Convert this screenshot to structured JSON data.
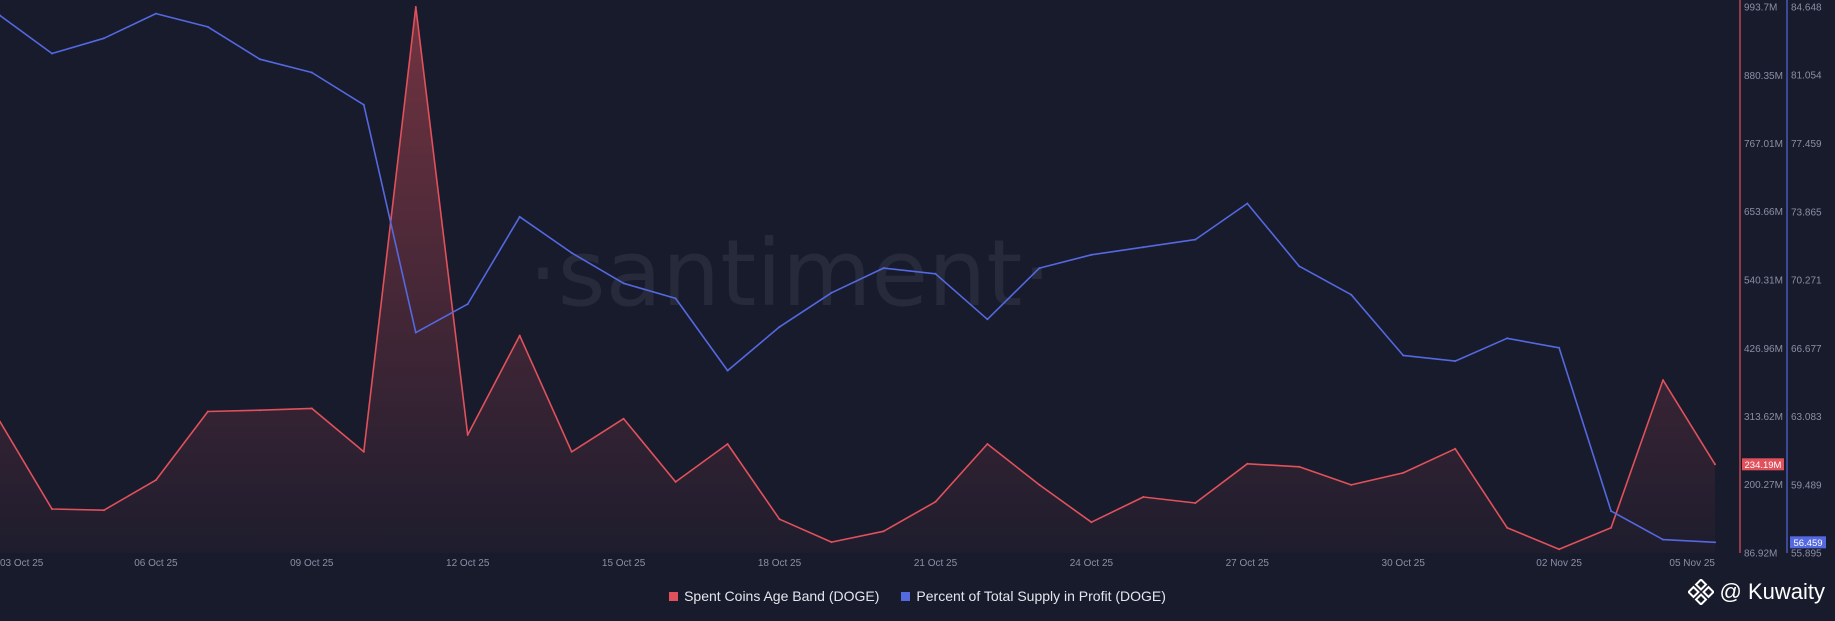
{
  "watermark": "·santiment·",
  "chart_data": {
    "type": "line",
    "x": [
      "03 Oct 25",
      "04 Oct 25",
      "05 Oct 25",
      "06 Oct 25",
      "07 Oct 25",
      "08 Oct 25",
      "09 Oct 25",
      "10 Oct 25",
      "11 Oct 25",
      "12 Oct 25",
      "13 Oct 25",
      "14 Oct 25",
      "15 Oct 25",
      "16 Oct 25",
      "17 Oct 25",
      "18 Oct 25",
      "19 Oct 25",
      "20 Oct 25",
      "21 Oct 25",
      "22 Oct 25",
      "23 Oct 25",
      "24 Oct 25",
      "25 Oct 25",
      "26 Oct 25",
      "27 Oct 25",
      "28 Oct 25",
      "29 Oct 25",
      "30 Oct 25",
      "31 Oct 25",
      "01 Nov 25",
      "02 Nov 25",
      "03 Nov 25",
      "04 Nov 25",
      "05 Nov 25"
    ],
    "x_tick_labels": [
      "03 Oct 25",
      "06 Oct 25",
      "09 Oct 25",
      "12 Oct 25",
      "15 Oct 25",
      "18 Oct 25",
      "21 Oct 25",
      "24 Oct 25",
      "27 Oct 25",
      "30 Oct 25",
      "02 Nov 25",
      "05 Nov 25"
    ],
    "x_tick_indices": [
      0,
      3,
      6,
      9,
      12,
      15,
      18,
      21,
      24,
      27,
      30,
      33
    ],
    "series": [
      {
        "name": "Spent Coins Age Band (DOGE)",
        "color": "#e0515b",
        "axis": "left",
        "area": true,
        "values": [
          305,
          160,
          158,
          208,
          322,
          324,
          327,
          255,
          993.7,
          283,
          448,
          255,
          310,
          205,
          268,
          143,
          105,
          123,
          172,
          268,
          200,
          138,
          180,
          170,
          235,
          230,
          200,
          220,
          260,
          129,
          93,
          129,
          374,
          234.19
        ],
        "last_value_label": "234.19M"
      },
      {
        "name": "Percent of Total Supply in Profit (DOGE)",
        "color": "#5468e0",
        "axis": "right",
        "area": false,
        "values": [
          84.2,
          82.2,
          83.0,
          84.3,
          83.6,
          81.9,
          81.2,
          79.5,
          67.5,
          69.0,
          73.6,
          71.7,
          70.1,
          69.3,
          65.5,
          67.8,
          69.6,
          70.9,
          70.6,
          68.2,
          70.9,
          71.6,
          72.0,
          72.4,
          74.3,
          71.0,
          69.5,
          66.3,
          66.0,
          67.2,
          66.7,
          58.1,
          56.6,
          56.459
        ],
        "last_value_label": "56.459"
      }
    ],
    "y_left": {
      "range": [
        86.92,
        993.7
      ],
      "tick_values": [
        86.92,
        200.27,
        313.62,
        426.96,
        540.31,
        653.66,
        767.01,
        880.35,
        993.7
      ],
      "tick_labels": [
        "86.92M",
        "200.27M",
        "313.62M",
        "426.96M",
        "540.31M",
        "653.66M",
        "767.01M",
        "880.35M",
        "993.7M"
      ]
    },
    "y_right": {
      "range": [
        55.895,
        84.648
      ],
      "tick_values": [
        55.895,
        59.489,
        63.083,
        66.677,
        70.271,
        73.865,
        77.459,
        81.054,
        84.648
      ],
      "tick_labels": [
        "55.895",
        "59.489",
        "63.083",
        "66.677",
        "70.271",
        "73.865",
        "77.459",
        "81.054",
        "84.648"
      ]
    },
    "grid": false,
    "legend_position": "bottom-center"
  },
  "legend": {
    "items": [
      {
        "label": "Spent Coins Age Band (DOGE)",
        "color": "#e0515b"
      },
      {
        "label": "Percent of Total Supply in Profit (DOGE)",
        "color": "#5468e0"
      }
    ]
  },
  "brand": {
    "text": "@ Kuwaity",
    "icon": "binance-diamond-icon"
  }
}
